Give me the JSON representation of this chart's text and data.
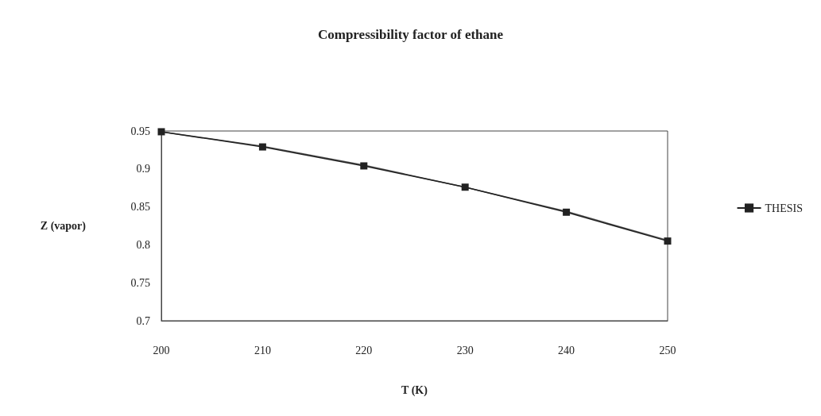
{
  "chart_data": {
    "type": "line",
    "title": "Compressibility factor of ethane",
    "xlabel": "T (K)",
    "ylabel": "Z (vapor)",
    "x": [
      200,
      210,
      220,
      230,
      240,
      250
    ],
    "series": [
      {
        "color": "#555555",
        "marker": "diamond",
        "values": [
          0.949,
          0.93,
          0.905,
          0.876,
          0.844,
          0.806
        ]
      },
      {
        "name": "THESIS",
        "color": "#222222",
        "marker": "square",
        "values": [
          0.949,
          0.929,
          0.904,
          0.876,
          0.843,
          0.805
        ]
      }
    ],
    "xlim": [
      200,
      250
    ],
    "xticks": [
      200,
      210,
      220,
      230,
      240,
      250
    ],
    "ylim": [
      0.7,
      0.95
    ],
    "yticks": [
      0.7,
      0.75,
      0.8,
      0.85,
      0.9,
      0.95
    ],
    "grid": false,
    "legend": "right",
    "line_style": "solid"
  }
}
